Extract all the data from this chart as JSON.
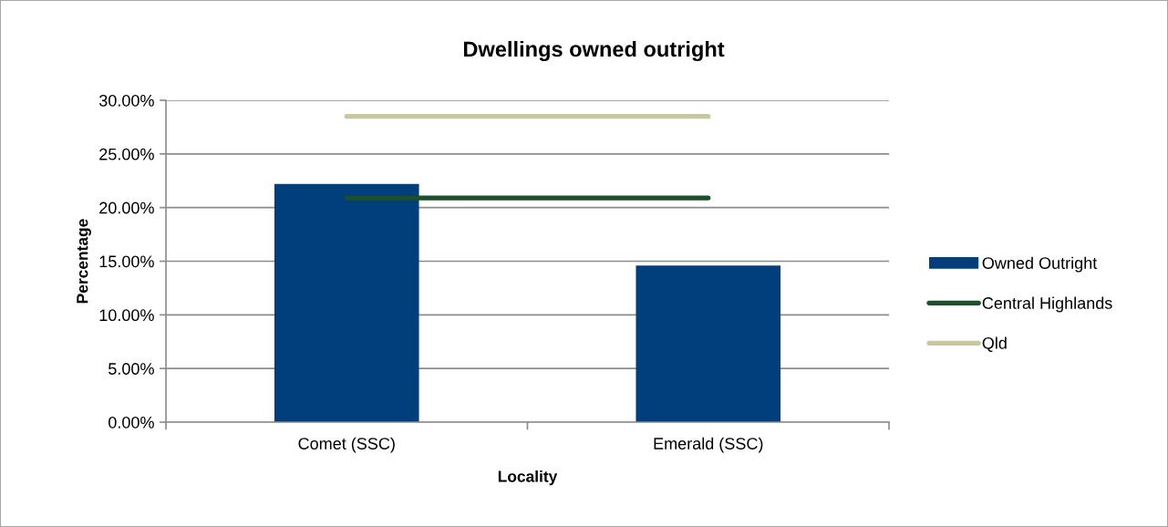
{
  "chart_data": {
    "type": "bar",
    "title": "Dwellings owned outright",
    "xlabel": "Locality",
    "ylabel": "Percentage",
    "categories": [
      "Comet (SSC)",
      "Emerald (SSC)"
    ],
    "series": [
      {
        "name": "Owned Outright",
        "color": "#003f7b",
        "values": [
          22.2,
          14.6
        ]
      },
      {
        "name": "Central Highlands",
        "type": "line",
        "color": "#1c4f2a",
        "values": [
          20.9,
          20.9
        ]
      },
      {
        "name": "Qld",
        "type": "line",
        "color": "#c9c6a4",
        "values": [
          28.5,
          28.5
        ]
      }
    ],
    "ylim": [
      0,
      30
    ],
    "yticks": [
      {
        "value": 0,
        "label": "0.00%"
      },
      {
        "value": 5,
        "label": "5.00%"
      },
      {
        "value": 10,
        "label": "10.00%"
      },
      {
        "value": 15,
        "label": "15.00%"
      },
      {
        "value": 20,
        "label": "20.00%"
      },
      {
        "value": 25,
        "label": "25.00%"
      },
      {
        "value": 30,
        "label": "30.00%"
      }
    ],
    "grid": "y",
    "legend": "right"
  }
}
